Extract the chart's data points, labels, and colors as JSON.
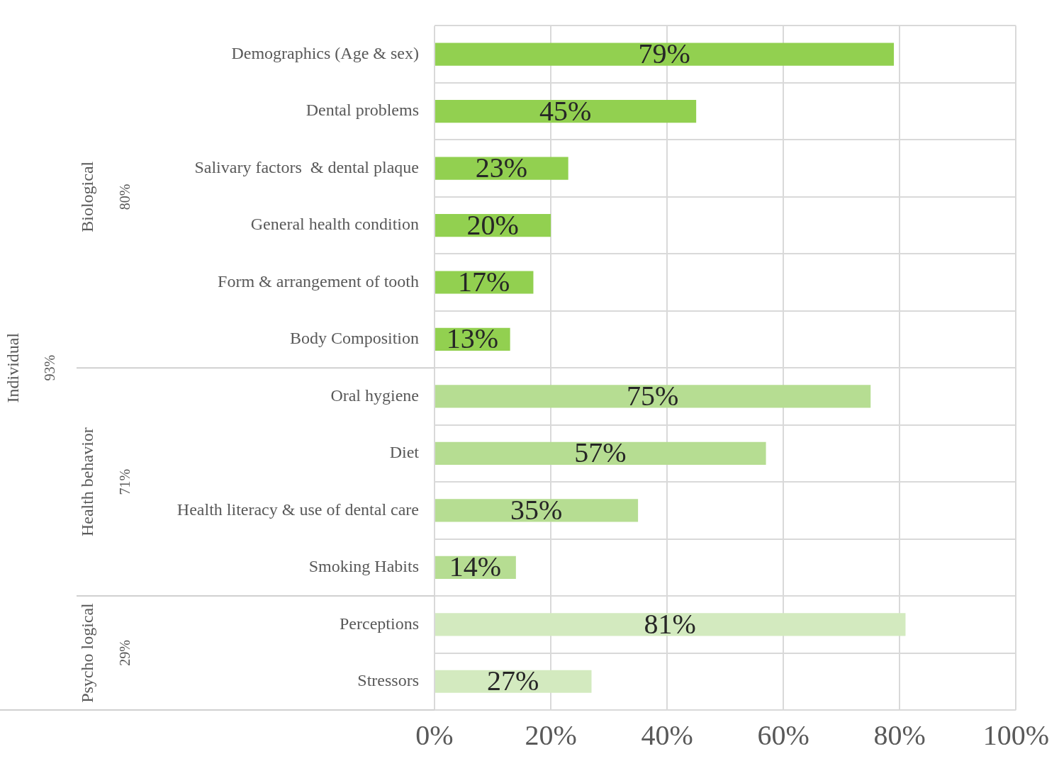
{
  "chart_data": {
    "type": "bar",
    "orientation": "horizontal",
    "categories": [
      "Demographics (Age & sex)",
      "Dental problems",
      "Salivary factors  & dental plaque",
      "General health condition",
      "Form & arrangement of tooth",
      "Body Composition",
      "Oral hygiene",
      "Diet",
      "Health literacy & use of dental care",
      "Smoking Habits",
      "Perceptions",
      "Stressors"
    ],
    "values": [
      79,
      45,
      23,
      20,
      17,
      13,
      75,
      57,
      35,
      14,
      81,
      27
    ],
    "colors": [
      "#92d050",
      "#92d050",
      "#92d050",
      "#92d050",
      "#92d050",
      "#92d050",
      "#b6dd92",
      "#b6dd92",
      "#b6dd92",
      "#b6dd92",
      "#d3eabf",
      "#d3eabf"
    ],
    "value_labels": [
      "79%",
      "45%",
      "23%",
      "20%",
      "17%",
      "13%",
      "75%",
      "57%",
      "35%",
      "14%",
      "81%",
      "27%"
    ],
    "xlim": [
      0,
      100
    ],
    "xticks": [
      {
        "value": 0,
        "label": "0%"
      },
      {
        "value": 20,
        "label": "20%"
      },
      {
        "value": 40,
        "label": "40%"
      },
      {
        "value": 60,
        "label": "60%"
      },
      {
        "value": 80,
        "label": "80%"
      },
      {
        "value": 100,
        "label": "100%"
      }
    ],
    "grid": true,
    "annotations": [
      "Individual",
      "93%",
      "Biological",
      "80%",
      "Health behavior",
      "71%",
      "Psycho logical",
      "29%"
    ]
  }
}
